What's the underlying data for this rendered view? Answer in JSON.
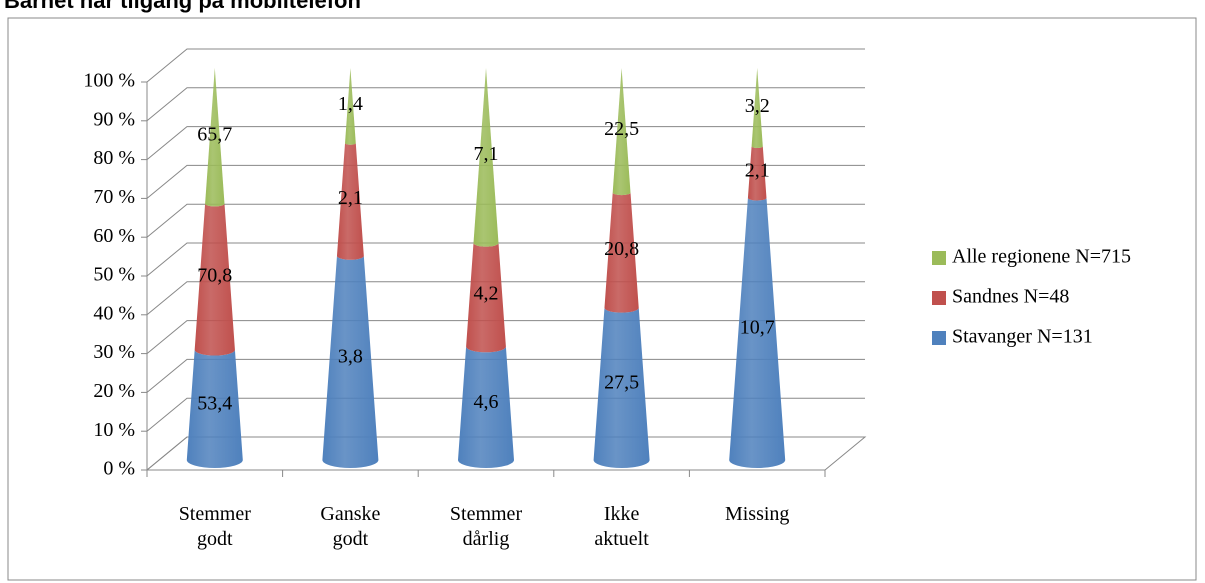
{
  "chart_data": {
    "type": "cone_stacked_percent",
    "title": "Barnet har tilgang på mobiltelefon",
    "categories": [
      "Stemmer godt",
      "Ganske godt",
      "Stemmer dårlig",
      "Ikke aktuelt",
      "Missing"
    ],
    "series": [
      {
        "name": "Stavanger N=131",
        "color": "#4f81bd",
        "values": [
          53.4,
          3.8,
          4.6,
          27.5,
          10.7
        ],
        "value_labels": [
          "53,4",
          "3,8",
          "4,6",
          "27,5",
          "10,7"
        ]
      },
      {
        "name": "Sandnes N=48",
        "color": "#c0504d",
        "values": [
          70.8,
          2.1,
          4.2,
          20.8,
          2.1
        ],
        "value_labels": [
          "70,8",
          "2,1",
          "4,2",
          "20,8",
          "2,1"
        ]
      },
      {
        "name": "Alle regionene N=715",
        "color": "#9bbb59",
        "values": [
          65.7,
          1.4,
          7.1,
          22.5,
          3.2
        ],
        "value_labels": [
          "65,7",
          "1,4",
          "7,1",
          "22,5",
          "3,2"
        ]
      }
    ],
    "ylim": [
      0,
      100
    ],
    "yticks": [
      {
        "value": 0,
        "label": "0 %"
      },
      {
        "value": 10,
        "label": "10 %"
      },
      {
        "value": 20,
        "label": "20 %"
      },
      {
        "value": 30,
        "label": "30 %"
      },
      {
        "value": 40,
        "label": "40 %"
      },
      {
        "value": 50,
        "label": "50 %"
      },
      {
        "value": 60,
        "label": "60 %"
      },
      {
        "value": 70,
        "label": "70 %"
      },
      {
        "value": 80,
        "label": "80 %"
      },
      {
        "value": 90,
        "label": "90 %"
      },
      {
        "value": 100,
        "label": "100 %"
      }
    ],
    "grid": true,
    "legend": "right"
  }
}
